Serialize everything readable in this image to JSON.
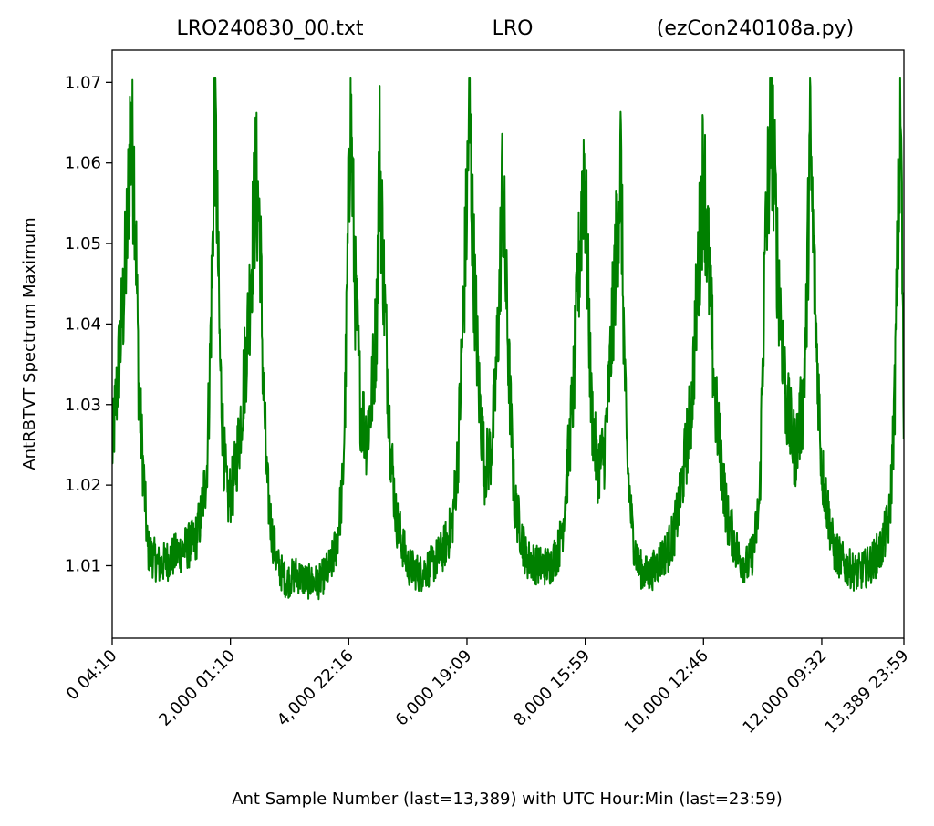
{
  "chart_data": {
    "type": "line",
    "title_left": "LRO240830_00.txt",
    "title_center": "LRO",
    "title_right": "(ezCon240108a.py)",
    "xlabel": "Ant Sample Number (last=13,389) with UTC Hour:Min (last=23:59)",
    "ylabel": "AntRBTVT Spectrum Maximum",
    "xlim": [
      0,
      13389
    ],
    "ylim": [
      1.001,
      1.074
    ],
    "grid": false,
    "line_color": "#008000",
    "x_ticks": [
      {
        "value": 0,
        "label": "0  04:10"
      },
      {
        "value": 2000,
        "label": "2,000  01:10"
      },
      {
        "value": 4000,
        "label": "4,000  22:16"
      },
      {
        "value": 6000,
        "label": "6,000  19:09"
      },
      {
        "value": 8000,
        "label": "8,000  15:59"
      },
      {
        "value": 10000,
        "label": "10,000  12:46"
      },
      {
        "value": 12000,
        "label": "12,000  09:32"
      },
      {
        "value": 13389,
        "label": "13,389  23:59"
      }
    ],
    "y_ticks": [
      {
        "value": 1.01,
        "label": "1.01"
      },
      {
        "value": 1.02,
        "label": "1.02"
      },
      {
        "value": 1.03,
        "label": "1.03"
      },
      {
        "value": 1.04,
        "label": "1.04"
      },
      {
        "value": 1.05,
        "label": "1.05"
      },
      {
        "value": 1.06,
        "label": "1.06"
      },
      {
        "value": 1.07,
        "label": "1.07"
      }
    ],
    "series": [
      {
        "x": [
          0,
          120,
          200,
          260,
          300,
          380,
          450,
          600,
          800,
          1000,
          1200,
          1400,
          1500,
          1600,
          1650,
          1700,
          1730,
          1770,
          1820,
          1880,
          1950,
          2050,
          2150,
          2300,
          2430,
          2500,
          2550,
          2620,
          2700,
          2800,
          2950,
          3100,
          3300,
          3500,
          3700,
          3800,
          3900,
          3950,
          3990,
          4030,
          4100,
          4200,
          4300,
          4380,
          4470,
          4520,
          4600,
          4700,
          4800,
          5000,
          5200,
          5400,
          5600,
          5750,
          5850,
          5930,
          6000,
          6040,
          6100,
          6200,
          6300,
          6400,
          6470,
          6550,
          6600,
          6700,
          6800,
          7000,
          7200,
          7400,
          7550,
          7620,
          7700,
          7800,
          7900,
          7980,
          8050,
          8100,
          8200,
          8320,
          8400,
          8500,
          8600,
          8650,
          8700,
          8800,
          8900,
          9000,
          9100,
          9200,
          9300,
          9400,
          9500,
          9600,
          9700,
          9800,
          10000,
          10200,
          10400,
          10600,
          10750,
          10850,
          10950,
          10995,
          11050,
          11150,
          11250,
          11400,
          11550,
          11680,
          11740,
          11800,
          11900,
          12000,
          12200,
          12400,
          12600,
          12800,
          13000,
          13150,
          13230,
          13290,
          13340,
          13389
        ],
        "y": [
          1.024,
          1.036,
          1.044,
          1.052,
          1.064,
          1.058,
          1.032,
          1.012,
          1.01,
          1.011,
          1.012,
          1.013,
          1.016,
          1.022,
          1.034,
          1.05,
          1.068,
          1.056,
          1.036,
          1.025,
          1.018,
          1.02,
          1.026,
          1.04,
          1.058,
          1.052,
          1.034,
          1.02,
          1.014,
          1.01,
          1.008,
          1.009,
          1.008,
          1.008,
          1.01,
          1.013,
          1.02,
          1.034,
          1.052,
          1.068,
          1.046,
          1.03,
          1.026,
          1.03,
          1.04,
          1.062,
          1.044,
          1.026,
          1.016,
          1.01,
          1.009,
          1.01,
          1.012,
          1.015,
          1.024,
          1.04,
          1.055,
          1.068,
          1.05,
          1.032,
          1.022,
          1.024,
          1.03,
          1.044,
          1.058,
          1.036,
          1.018,
          1.011,
          1.01,
          1.01,
          1.012,
          1.015,
          1.022,
          1.032,
          1.048,
          1.061,
          1.044,
          1.03,
          1.022,
          1.024,
          1.032,
          1.046,
          1.06,
          1.04,
          1.024,
          1.014,
          1.01,
          1.009,
          1.009,
          1.01,
          1.011,
          1.012,
          1.014,
          1.018,
          1.024,
          1.03,
          1.06,
          1.03,
          1.016,
          1.011,
          1.01,
          1.012,
          1.018,
          1.034,
          1.05,
          1.067,
          1.048,
          1.03,
          1.024,
          1.03,
          1.04,
          1.063,
          1.04,
          1.022,
          1.012,
          1.01,
          1.009,
          1.01,
          1.012,
          1.016,
          1.03,
          1.052,
          1.066,
          1.024
        ]
      }
    ]
  }
}
